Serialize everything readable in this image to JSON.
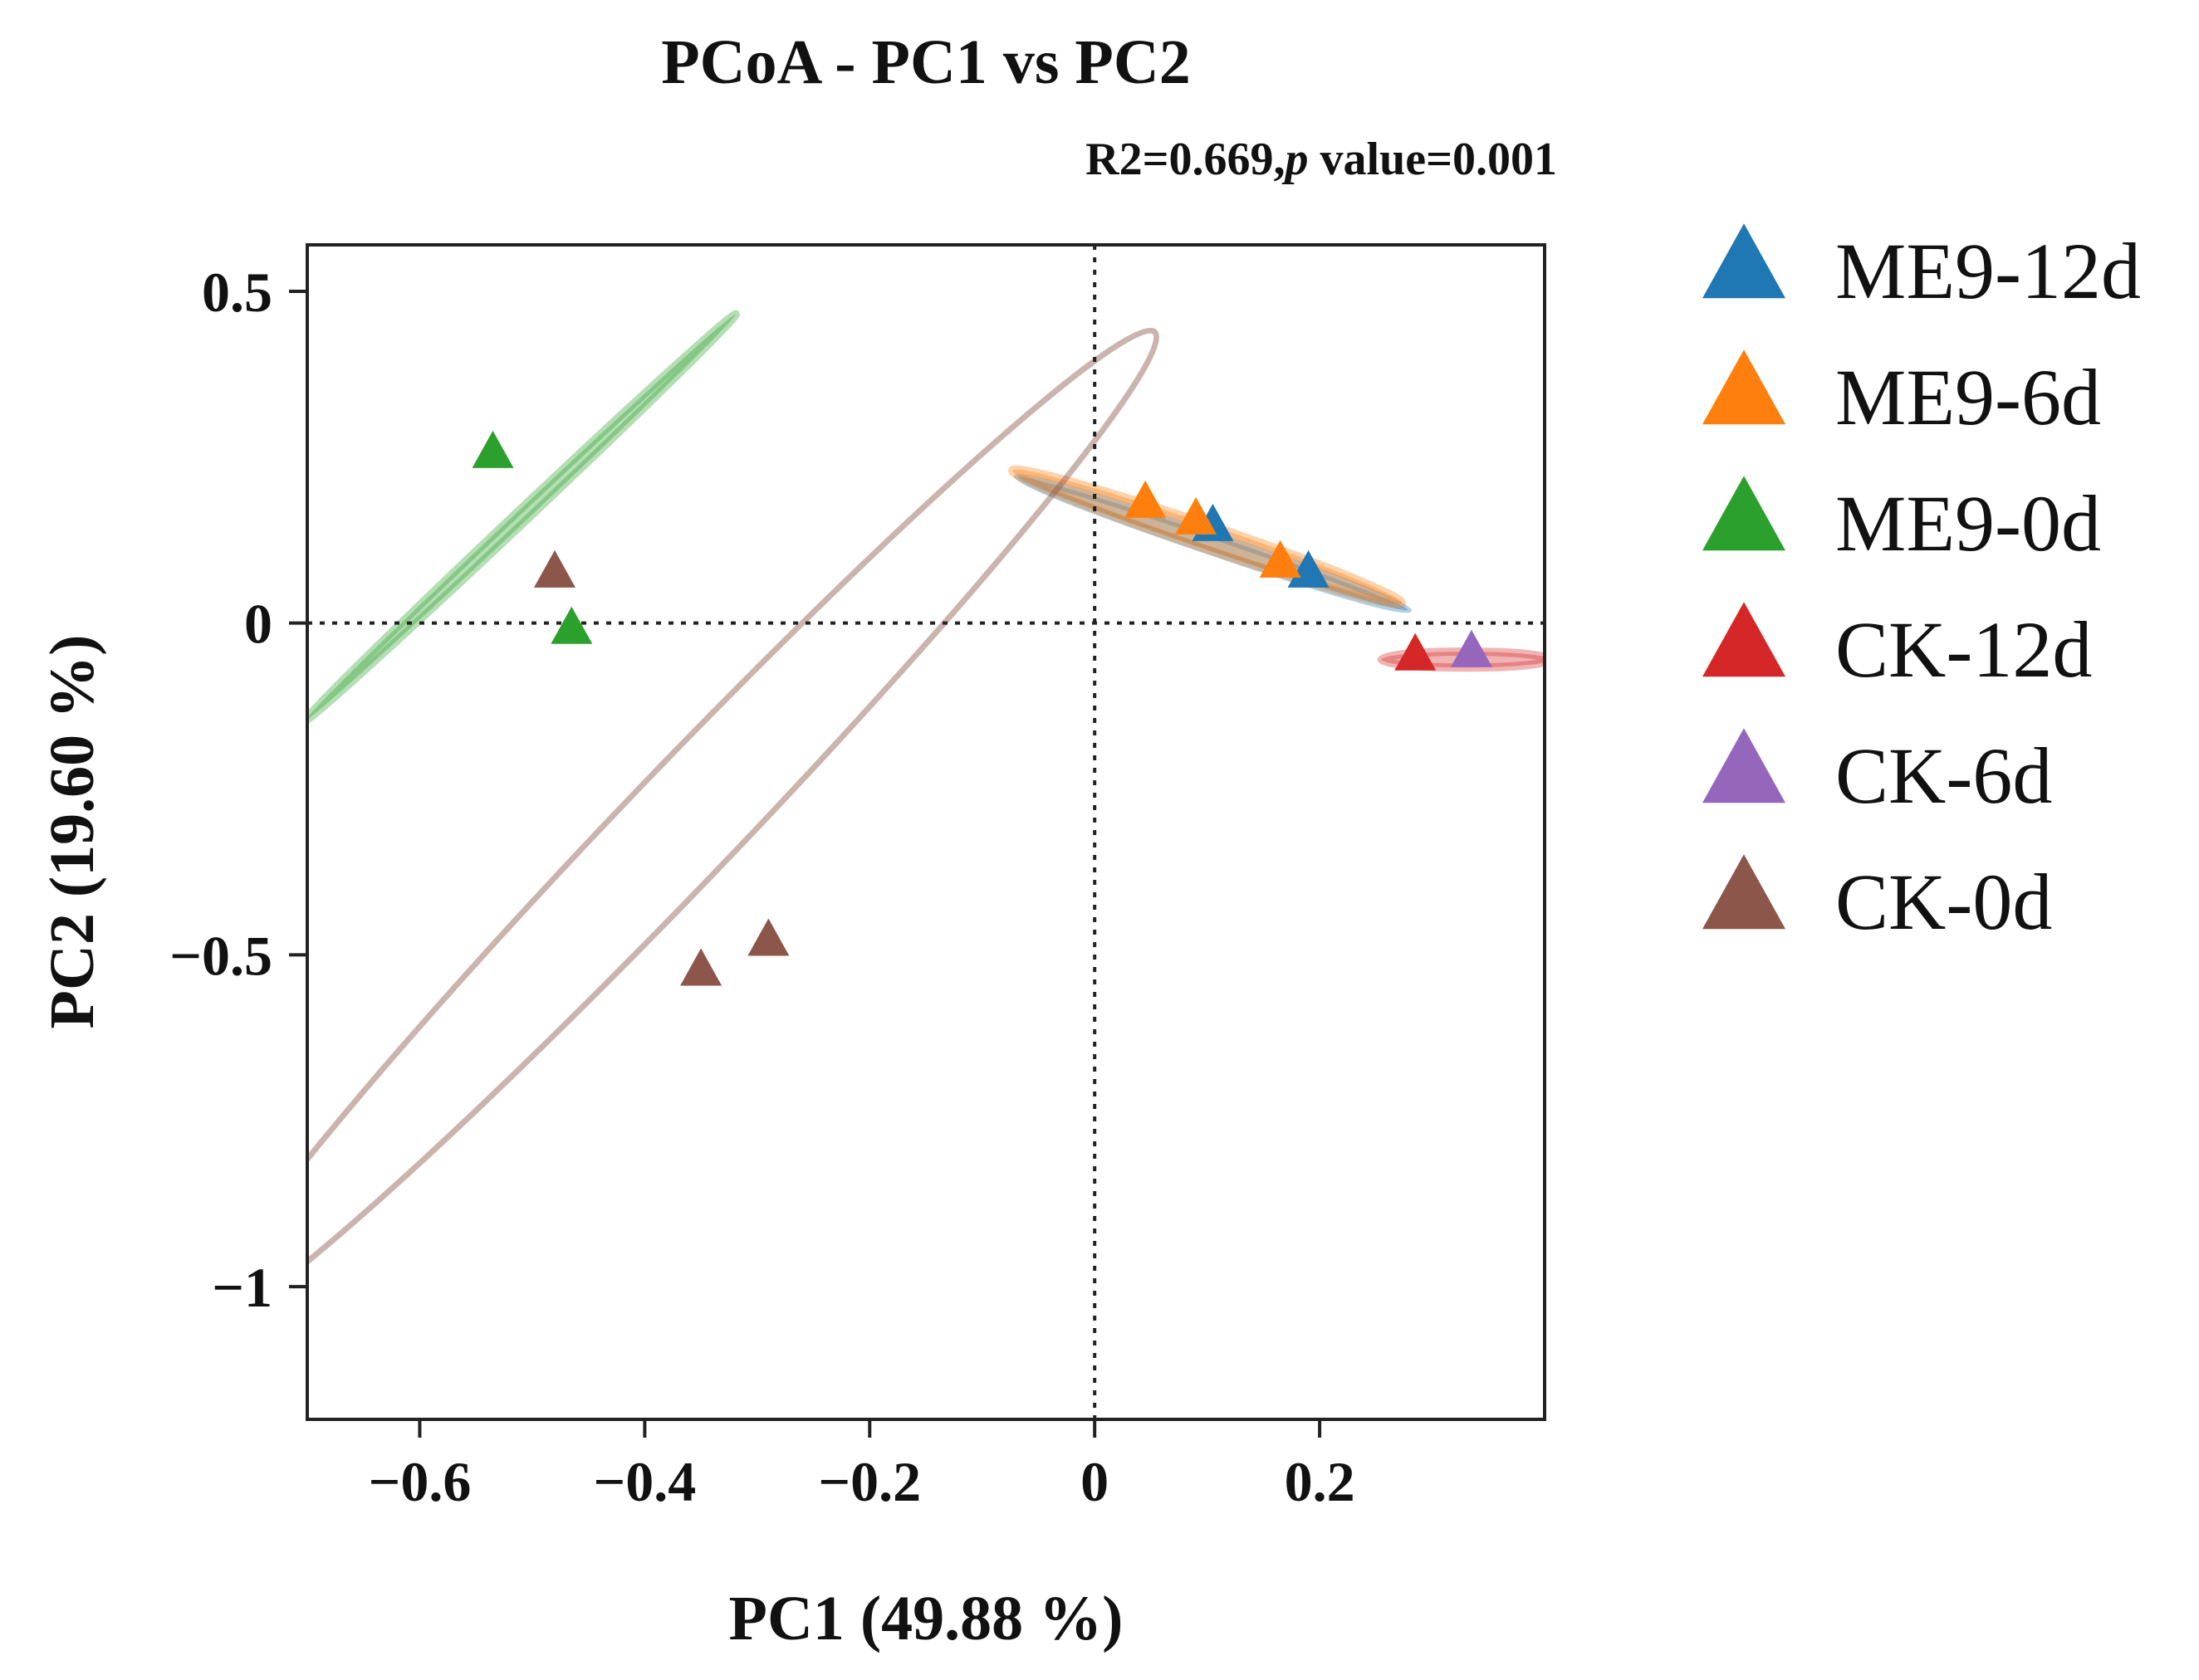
{
  "chart_data": {
    "type": "scatter",
    "title": "PCoA - PC1 vs PC2",
    "subtitle": {
      "prefix": "R2=0.669,",
      "italic": "p",
      "suffix": " value=0.001"
    },
    "xlabel": "PC1 (49.88 %)",
    "ylabel": "PC2 (19.60 %)",
    "xlim": [
      -0.7,
      0.4
    ],
    "ylim": [
      -1.2,
      0.57
    ],
    "xticks": [
      -0.6,
      -0.4,
      -0.2,
      0,
      0.2
    ],
    "xtick_labels": [
      "−0.6",
      "−0.4",
      "−0.2",
      "0",
      "0.2"
    ],
    "yticks": [
      0.5,
      0,
      -0.5,
      -1
    ],
    "ytick_labels": [
      "0.5",
      "0",
      "−0.5",
      "−1"
    ],
    "grid": false,
    "reference_lines": {
      "x": 0,
      "y": 0,
      "style": "dotted"
    },
    "legend_position": "right",
    "marker": "triangle-icon",
    "series": [
      {
        "name": "ME9-12d",
        "color": "#1f77b4",
        "points": [
          {
            "x": 0.105,
            "y": 0.145
          },
          {
            "x": 0.19,
            "y": 0.075
          }
        ],
        "ellipse": {
          "cx": 0.105,
          "cy": 0.12,
          "rx": 0.2,
          "ry": 0.012,
          "angle_deg": -30
        }
      },
      {
        "name": "ME9-6d",
        "color": "#ff7f0e",
        "points": [
          {
            "x": 0.045,
            "y": 0.18
          },
          {
            "x": 0.09,
            "y": 0.155
          },
          {
            "x": 0.165,
            "y": 0.09
          }
        ],
        "ellipse": {
          "cx": 0.1,
          "cy": 0.13,
          "rx": 0.2,
          "ry": 0.018,
          "angle_deg": -30
        }
      },
      {
        "name": "ME9-0d",
        "color": "#2ca02c",
        "points": [
          {
            "x": -0.535,
            "y": 0.255
          },
          {
            "x": -0.465,
            "y": -0.01
          }
        ],
        "ellipse": {
          "cx": -0.51,
          "cy": 0.16,
          "rx": 0.36,
          "ry": 0.009,
          "angle_deg": 58
        }
      },
      {
        "name": "CK-12d",
        "color": "#d62728",
        "points": [
          {
            "x": 0.285,
            "y": -0.05
          }
        ],
        "ellipse": {
          "cx": 0.33,
          "cy": -0.055,
          "rx": 0.075,
          "ry": 0.012,
          "angle_deg": 0
        }
      },
      {
        "name": "CK-6d",
        "color": "#9467bd",
        "points": [
          {
            "x": 0.335,
            "y": -0.045
          }
        ],
        "ellipse": null
      },
      {
        "name": "CK-0d",
        "color": "#8c564b",
        "points": [
          {
            "x": -0.48,
            "y": 0.075
          },
          {
            "x": -0.35,
            "y": -0.525
          },
          {
            "x": -0.29,
            "y": -0.48
          }
        ],
        "ellipse": {
          "cx": -0.37,
          "cy": -0.31,
          "rx": 0.86,
          "ry": 0.085,
          "angle_deg": 60.5
        }
      }
    ]
  }
}
